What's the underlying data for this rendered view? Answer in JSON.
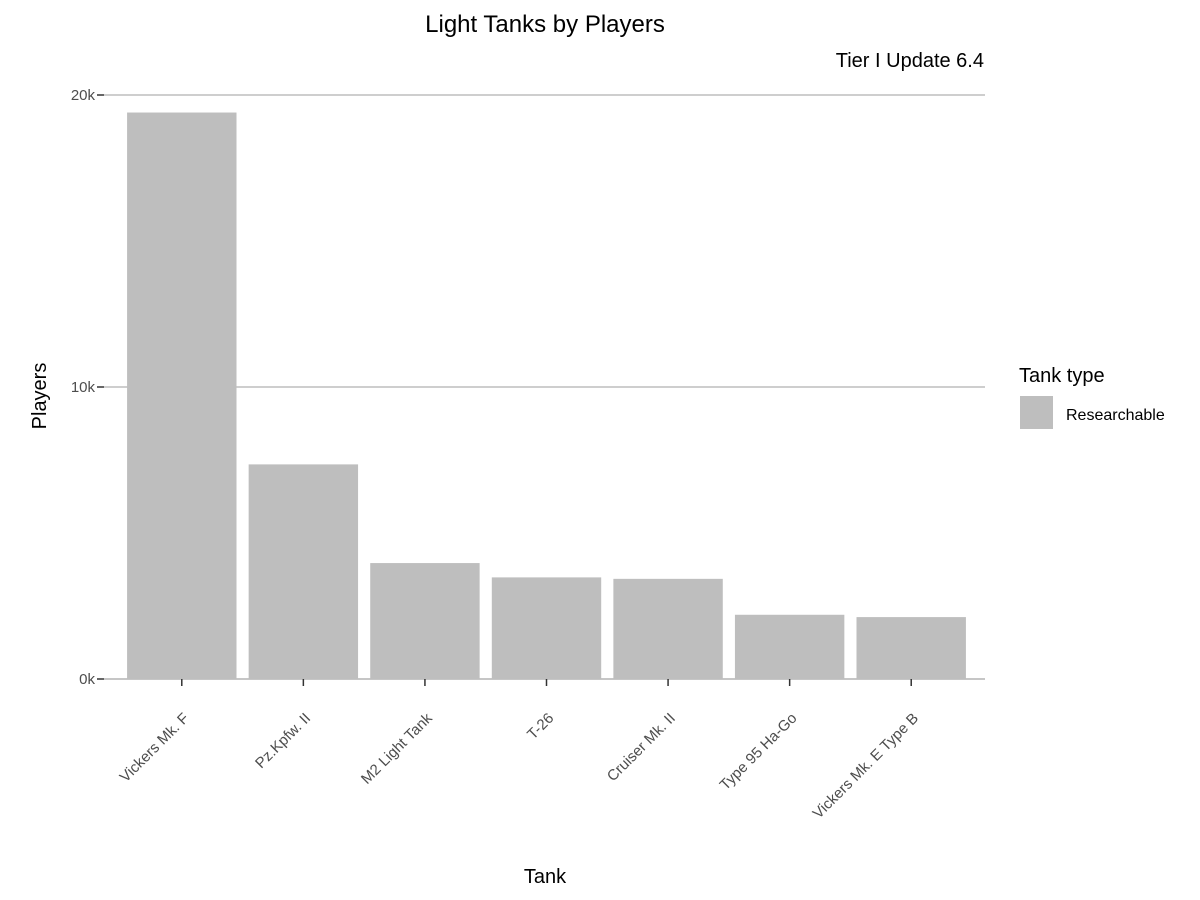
{
  "chart_data": {
    "type": "bar",
    "title": "Light Tanks by Players",
    "subtitle": "Tier I Update 6.4",
    "xlabel": "Tank",
    "ylabel": "Players",
    "categories": [
      "Vickers Mk. F",
      "Pz.Kpfw. II",
      "M2 Light Tank",
      "T-26",
      "Cruiser Mk. II",
      "Type 95 Ha-Go",
      "Vickers Mk. E Type B"
    ],
    "values": [
      19400,
      7350,
      3970,
      3480,
      3430,
      2200,
      2120
    ],
    "ylim": [
      0,
      20000
    ],
    "yticks": [
      0,
      10000,
      20000
    ],
    "ytick_labels": [
      "0k",
      "10k",
      "20k"
    ],
    "grid": "horizontal major",
    "legend": {
      "title": "Tank type",
      "placement": "right",
      "items": [
        {
          "label": "Researchable",
          "color": "#bebebe"
        }
      ]
    },
    "bar_color": "#bebebe",
    "grid_color": "#bebebe",
    "axis_color": "#bebebe"
  }
}
